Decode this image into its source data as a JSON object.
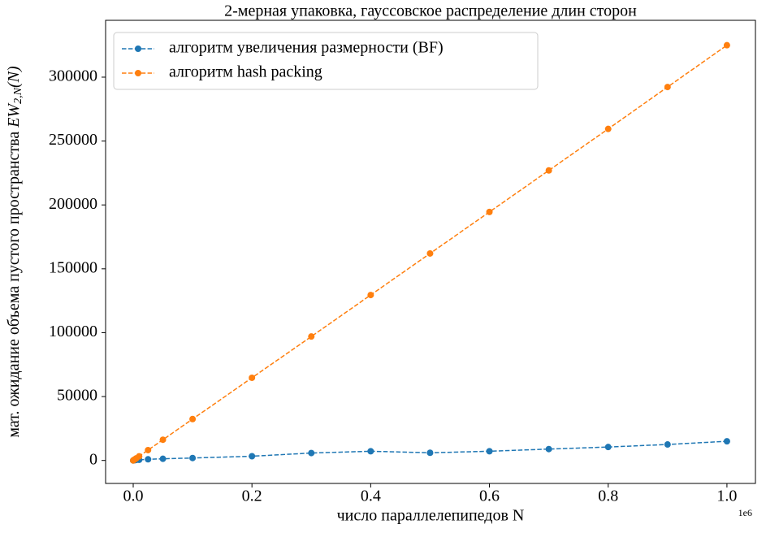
{
  "chart_data": {
    "type": "line",
    "title": "2-мерная упаковка, гауссовское распределение длин сторон",
    "x_label": "число параллелепипедов N",
    "y_label": {
      "text": "мат. ожидание объема пустого пространства ",
      "math": "EW",
      "sub": "2,N",
      "tail": "(N)"
    },
    "x_offset_label": "1e6",
    "x": [
      0,
      1000,
      2500,
      5000,
      10000,
      25000,
      50000,
      100000,
      200000,
      300000,
      400000,
      500000,
      600000,
      700000,
      800000,
      900000,
      1000000
    ],
    "series": [
      {
        "name": "алгоритм увеличения размерности (BF)",
        "color": "#1f77b4",
        "values": [
          0,
          100,
          200,
          400,
          500,
          900,
          1300,
          1900,
          3300,
          5800,
          7200,
          6000,
          7200,
          8900,
          10500,
          12500,
          15000
        ]
      },
      {
        "name": "алгоритм hash packing",
        "color": "#ff7f0e",
        "values": [
          0,
          325,
          810,
          1620,
          3250,
          8100,
          16200,
          32400,
          64700,
          97000,
          129500,
          162000,
          194500,
          227000,
          259500,
          292300,
          325000
        ]
      }
    ],
    "xlim": [
      -46500,
      1048000
    ],
    "ylim": [
      -18000,
      344500
    ],
    "xticks": [
      {
        "value": 0,
        "label": "0.0"
      },
      {
        "value": 200000,
        "label": "0.2"
      },
      {
        "value": 400000,
        "label": "0.4"
      },
      {
        "value": 600000,
        "label": "0.6"
      },
      {
        "value": 800000,
        "label": "0.8"
      },
      {
        "value": 1000000,
        "label": "1.0"
      }
    ],
    "yticks": [
      0,
      50000,
      100000,
      150000,
      200000,
      250000,
      300000
    ],
    "legend": "upper left",
    "grid": false
  }
}
